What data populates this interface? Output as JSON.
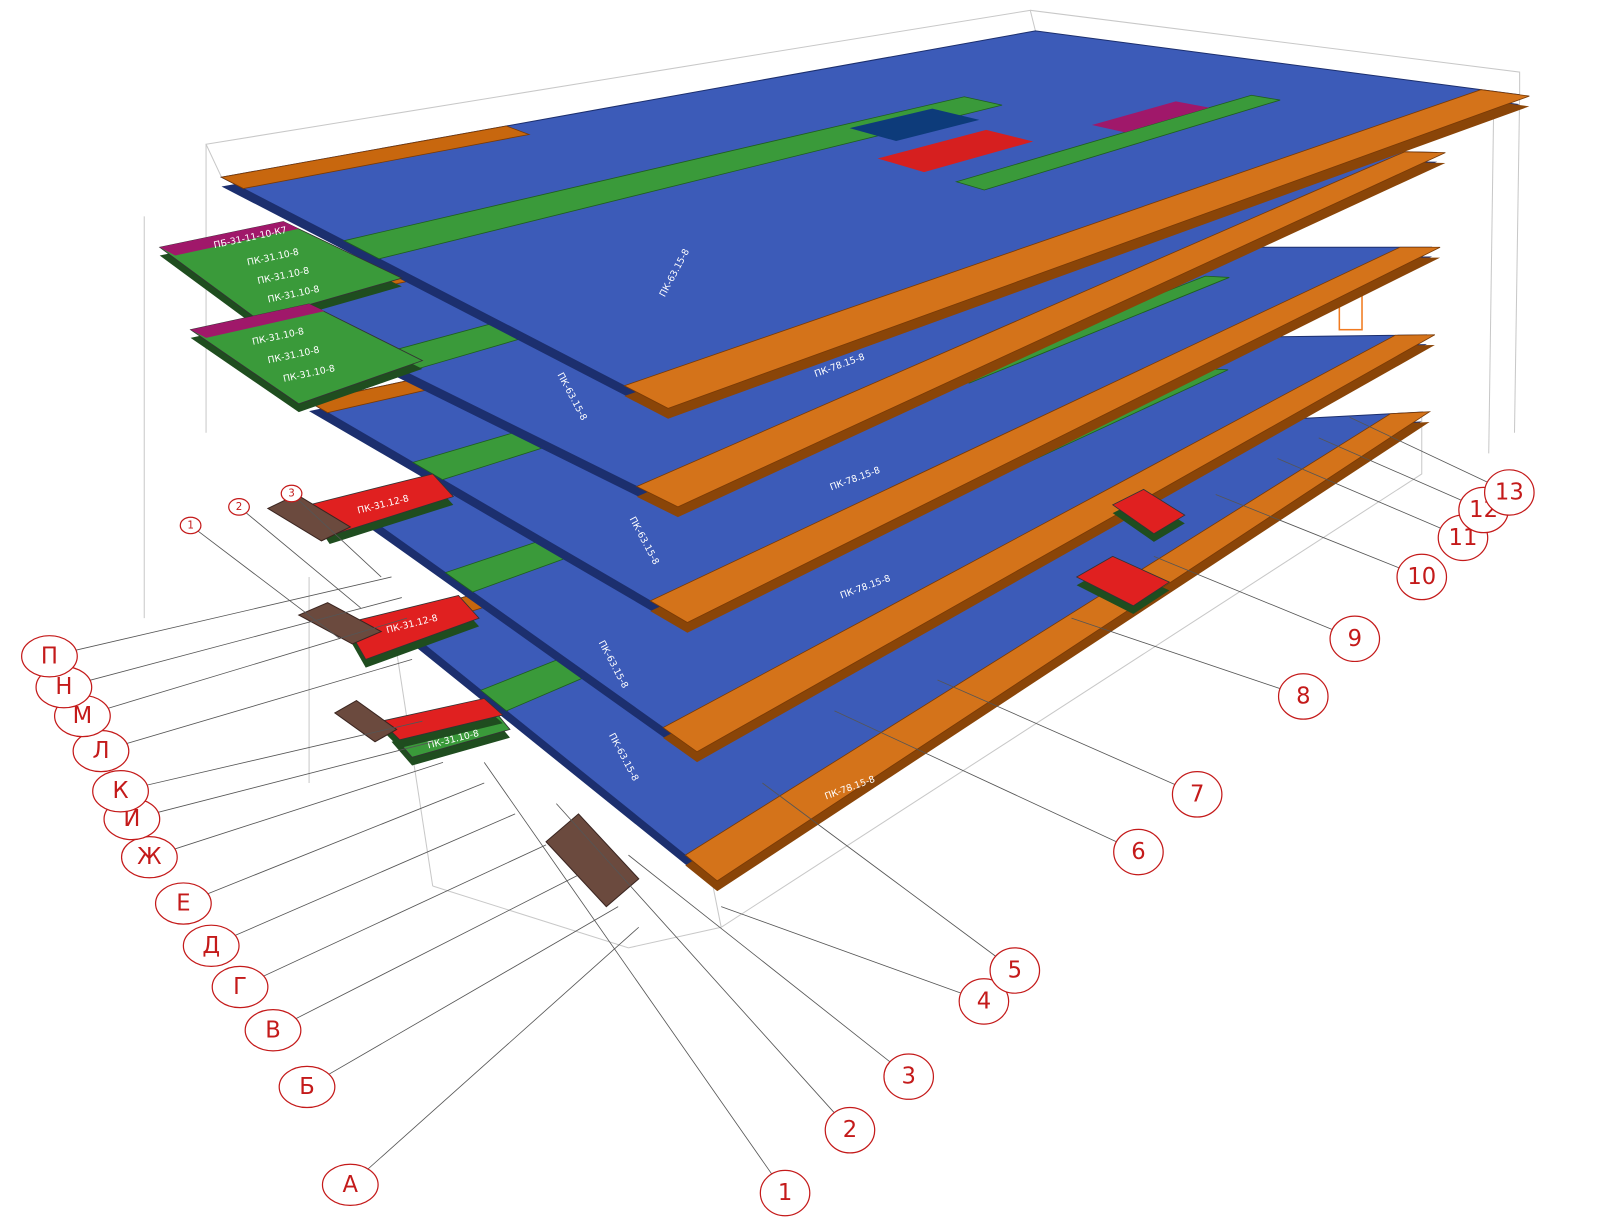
{
  "letter_axes": [
    "А",
    "Б",
    "В",
    "Г",
    "Д",
    "Е",
    "Ж",
    "И",
    "К",
    "Л",
    "М",
    "Н",
    "П"
  ],
  "number_axes": [
    "1",
    "2",
    "3",
    "4",
    "5",
    "6",
    "7",
    "8",
    "9",
    "10",
    "11",
    "12",
    "13"
  ],
  "small_axes": [
    "1",
    "2",
    "3"
  ],
  "slab_labels": [
    "ПК-78.15-8",
    "ПК-78.15-8",
    "ПК-78.15-8",
    "ПК-78.15-8",
    "ПК-63.15-8",
    "ПК-63.15-8",
    "ПК-63.15-8",
    "ПК-63.15-8",
    "ПК-63.15-8",
    "ПБ-31-11-10-К7",
    "ПК-31.10-8",
    "ПК-31.10-8",
    "ПК-31.10-8",
    "ПК-31.10-8",
    "ПК-31.10-8",
    "ПК-31.10-8",
    "ПК-31.12-8",
    "ПК-31.12-8",
    "ПК-31.10-8"
  ]
}
